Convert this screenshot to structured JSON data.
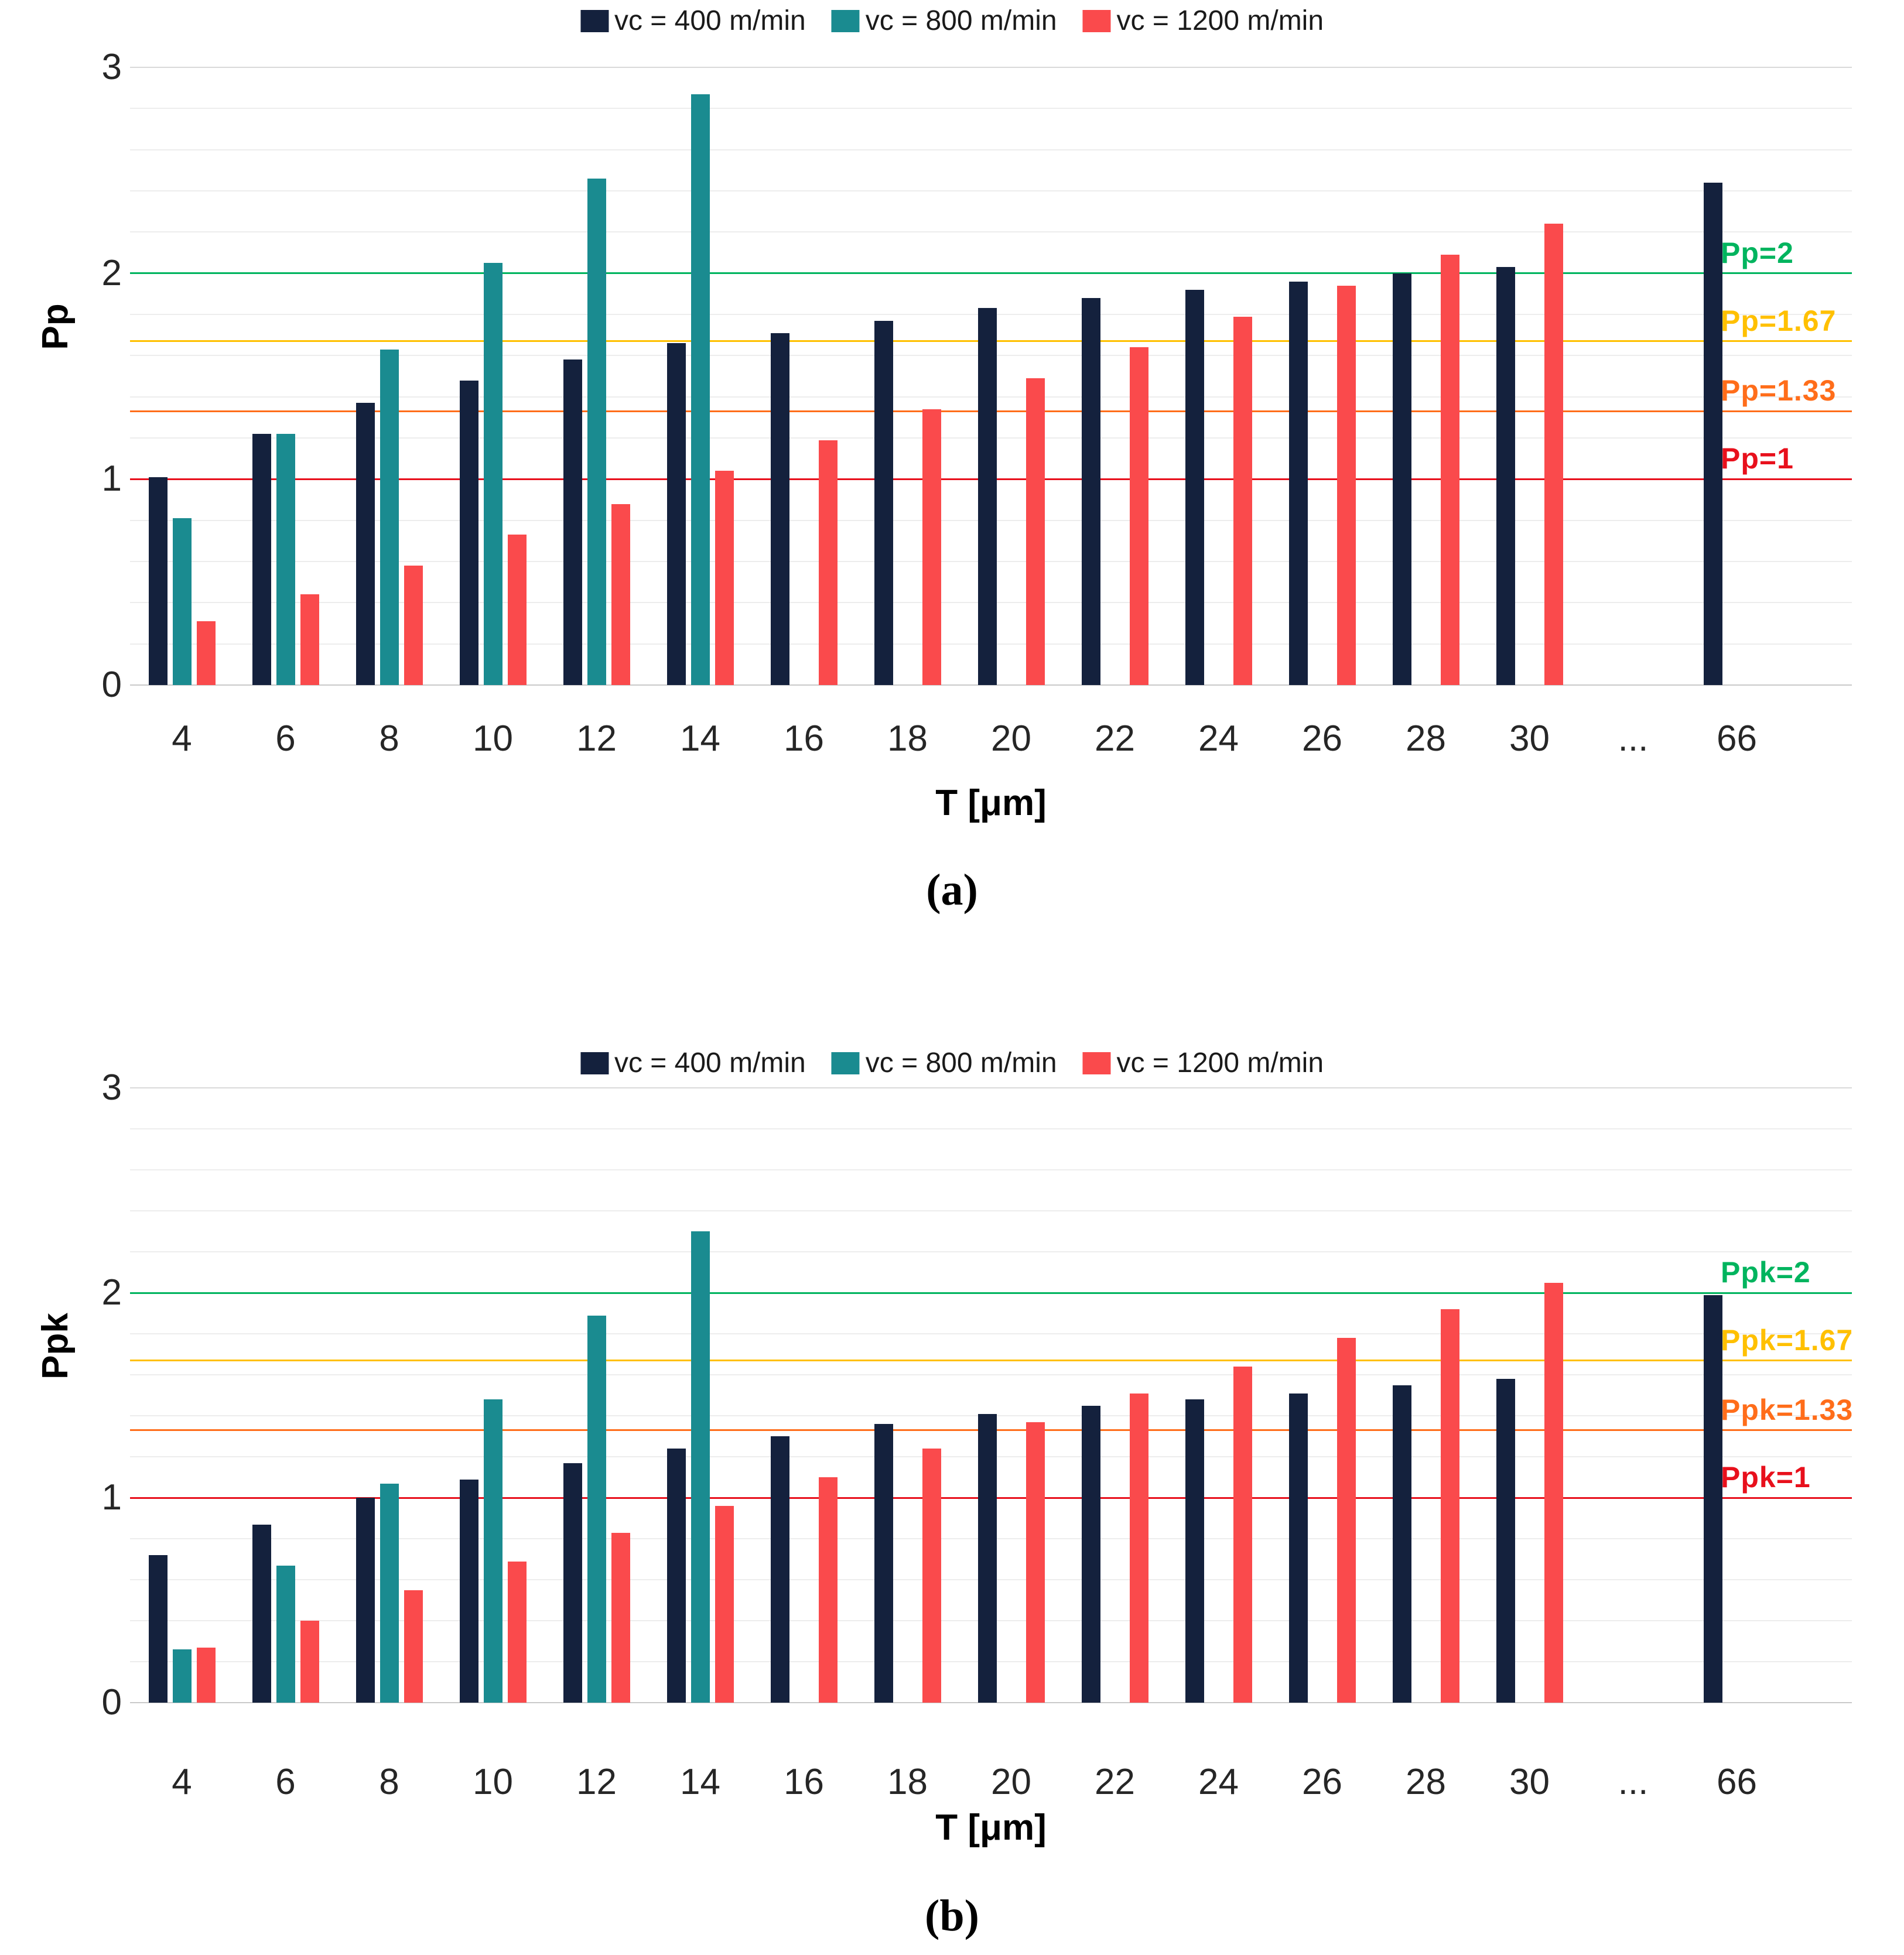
{
  "page": {
    "background": "#ffffff"
  },
  "colors": {
    "vc400": "#14213d",
    "vc800": "#1a8b90",
    "vc1200": "#fa4a4c",
    "ref_green": "#00b45e",
    "ref_yellow": "#ffc000",
    "ref_orange": "#ff6d1a",
    "ref_red": "#e8101c"
  },
  "chart_data": [
    {
      "type": "bar",
      "caption": "(a)",
      "ylabel": "Pp",
      "xlabel": "T [μm]",
      "ylim": [
        0,
        3
      ],
      "yticks": [
        0,
        1,
        2,
        3
      ],
      "grid": {
        "minor_step": 0.2,
        "on": true
      },
      "legend_position": "top-center",
      "categories": [
        "4",
        "6",
        "8",
        "10",
        "12",
        "14",
        "16",
        "18",
        "20",
        "22",
        "24",
        "26",
        "28",
        "30",
        "...",
        "66"
      ],
      "series": [
        {
          "name": "vc = 400 m/min",
          "color": "#14213d",
          "values": [
            1.01,
            1.22,
            1.37,
            1.48,
            1.58,
            1.66,
            1.71,
            1.77,
            1.83,
            1.88,
            1.92,
            1.96,
            2.0,
            2.03,
            null,
            2.44
          ]
        },
        {
          "name": "vc = 800 m/min",
          "color": "#1a8b90",
          "values": [
            0.81,
            1.22,
            1.63,
            2.05,
            2.46,
            2.87,
            null,
            null,
            null,
            null,
            null,
            null,
            null,
            null,
            null,
            null
          ]
        },
        {
          "name": "vc = 1200 m/min",
          "color": "#fa4a4c",
          "values": [
            0.31,
            0.44,
            0.58,
            0.73,
            0.88,
            1.04,
            1.19,
            1.34,
            1.49,
            1.64,
            1.79,
            1.94,
            2.09,
            2.24,
            null,
            null
          ]
        }
      ],
      "ref_lines": [
        {
          "label": "Pp=2",
          "value": 2.0,
          "color": "#00b45e"
        },
        {
          "label": "Pp=1.67",
          "value": 1.67,
          "color": "#ffc000"
        },
        {
          "label": "Pp=1.33",
          "value": 1.33,
          "color": "#ff6d1a"
        },
        {
          "label": "Pp=1",
          "value": 1.0,
          "color": "#e8101c"
        }
      ]
    },
    {
      "type": "bar",
      "caption": "(b)",
      "ylabel": "Ppk",
      "xlabel": "T [μm]",
      "ylim": [
        0,
        3
      ],
      "yticks": [
        0,
        1,
        2,
        3
      ],
      "grid": {
        "minor_step": 0.2,
        "on": true
      },
      "legend_position": "top-center",
      "categories": [
        "4",
        "6",
        "8",
        "10",
        "12",
        "14",
        "16",
        "18",
        "20",
        "22",
        "24",
        "26",
        "28",
        "30",
        "...",
        "66"
      ],
      "series": [
        {
          "name": "vc = 400 m/min",
          "color": "#14213d",
          "values": [
            0.72,
            0.87,
            1.0,
            1.09,
            1.17,
            1.24,
            1.3,
            1.36,
            1.41,
            1.45,
            1.48,
            1.51,
            1.55,
            1.58,
            null,
            1.99
          ]
        },
        {
          "name": "vc = 800 m/min",
          "color": "#1a8b90",
          "values": [
            0.26,
            0.67,
            1.07,
            1.48,
            1.89,
            2.3,
            null,
            null,
            null,
            null,
            null,
            null,
            null,
            null,
            null,
            null
          ]
        },
        {
          "name": "vc = 1200 m/min",
          "color": "#fa4a4c",
          "values": [
            0.27,
            0.4,
            0.55,
            0.69,
            0.83,
            0.96,
            1.1,
            1.24,
            1.37,
            1.51,
            1.64,
            1.78,
            1.92,
            2.05,
            null,
            null
          ]
        }
      ],
      "ref_lines": [
        {
          "label": "Ppk=2",
          "value": 2.0,
          "color": "#00b45e"
        },
        {
          "label": "Ppk=1.67",
          "value": 1.67,
          "color": "#ffc000"
        },
        {
          "label": "Ppk=1.33",
          "value": 1.33,
          "color": "#ff6d1a"
        },
        {
          "label": "Ppk=1",
          "value": 1.0,
          "color": "#e8101c"
        }
      ]
    }
  ]
}
